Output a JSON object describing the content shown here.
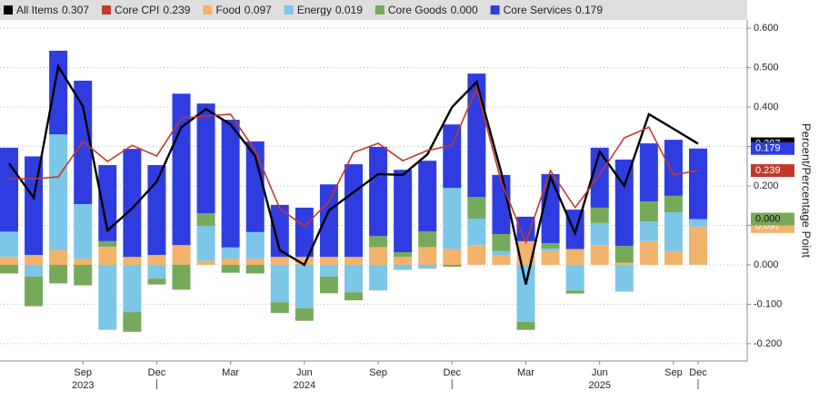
{
  "chart_data": {
    "type": "bar",
    "y_label": "Percent/Percentage Point",
    "categories": [
      null,
      null,
      null,
      "Sep",
      null,
      null,
      "Dec",
      null,
      null,
      "Mar",
      null,
      null,
      "Jun",
      null,
      null,
      "Sep",
      null,
      null,
      "Dec",
      null,
      null,
      "Mar",
      null,
      null,
      "Jun",
      null,
      null,
      "Sep",
      "Dec"
    ],
    "years": [
      "2023",
      "2024",
      "2025"
    ],
    "ylim": [
      -0.244,
      0.621
    ],
    "yticks": [
      {
        "value": 0.6,
        "label": "0.600"
      },
      {
        "value": 0.5,
        "label": "0.500"
      },
      {
        "value": 0.4,
        "label": "0.400"
      },
      {
        "value": 0.3,
        "label": "0.300"
      },
      {
        "value": 0.2,
        "label": "0.200"
      },
      {
        "value": 0.1,
        "label": "0.100"
      },
      {
        "value": 0,
        "label": "0.000"
      },
      {
        "value": -0.1,
        "label": "-0.100"
      },
      {
        "value": -0.2,
        "label": "-0.200"
      }
    ],
    "grid": true,
    "series": [
      {
        "name": "All Items",
        "type": "line",
        "color": "#000000",
        "values": [
          0.257,
          0.17,
          0.503,
          0.402,
          0.087,
          0.143,
          0.211,
          0.349,
          0.395,
          0.356,
          0.276,
          0.037,
          0.0,
          0.138,
          0.184,
          0.23,
          0.228,
          0.28,
          0.4,
          0.464,
          0.234,
          -0.05,
          0.223,
          0.08,
          0.287,
          0.2,
          0.382,
          0.345,
          0.307
        ]
      },
      {
        "name": "Core CPI",
        "type": "line",
        "color": "#c0392b",
        "values": [
          0.218,
          0.218,
          0.223,
          0.313,
          0.262,
          0.303,
          0.276,
          0.372,
          0.377,
          0.382,
          0.29,
          0.143,
          0.097,
          0.161,
          0.285,
          0.308,
          0.264,
          0.29,
          0.303,
          0.448,
          0.211,
          0.057,
          0.239,
          0.145,
          0.228,
          0.322,
          0.349,
          0.228,
          0.239
        ]
      },
      {
        "name": "Food",
        "type": "bar",
        "color": "#f2b36c",
        "values": [
          0.02,
          0.025,
          0.037,
          0.015,
          0.046,
          0.02,
          0.025,
          0.05,
          0.01,
          0.015,
          0.015,
          0.02,
          0.02,
          0.02,
          0.02,
          0.045,
          0.02,
          0.045,
          0.04,
          0.05,
          0.025,
          0.06,
          0.035,
          0.04,
          0.05,
          0.005,
          0.06,
          0.035,
          0.097
        ]
      },
      {
        "name": "Energy",
        "type": "bar",
        "color": "#7cc6e8",
        "values": [
          0.064,
          -0.03,
          0.294,
          0.139,
          -0.165,
          -0.12,
          -0.035,
          0.0,
          0.089,
          0.029,
          0.068,
          -0.095,
          -0.11,
          -0.03,
          -0.07,
          -0.065,
          -0.013,
          -0.01,
          0.155,
          0.067,
          0.01,
          -0.145,
          0.006,
          -0.065,
          0.056,
          -0.068,
          0.05,
          0.098,
          0.019
        ]
      },
      {
        "name": "Core Goods",
        "type": "bar",
        "color": "#76a95a",
        "values": [
          -0.022,
          -0.075,
          -0.047,
          -0.052,
          0.014,
          -0.05,
          -0.015,
          -0.063,
          0.032,
          -0.02,
          -0.022,
          -0.027,
          -0.032,
          -0.042,
          -0.02,
          0.028,
          0.012,
          0.04,
          -0.005,
          0.055,
          0.043,
          -0.02,
          0.014,
          -0.008,
          0.039,
          0.043,
          0.051,
          0.042,
          0.0
        ],
        "value_labels": [
          null,
          null,
          null,
          null,
          null,
          null,
          null,
          null,
          null,
          null,
          null,
          null,
          null,
          null,
          null,
          null,
          null,
          null,
          null,
          null,
          null,
          null,
          null,
          null,
          null,
          null,
          null,
          null,
          "0.000"
        ]
      },
      {
        "name": "Core Services",
        "type": "bar",
        "color": "#2f3de0",
        "values": [
          0.213,
          0.25,
          0.212,
          0.313,
          0.193,
          0.274,
          0.228,
          0.384,
          0.278,
          0.324,
          0.23,
          0.132,
          0.125,
          0.184,
          0.235,
          0.226,
          0.209,
          0.179,
          0.161,
          0.313,
          0.15,
          0.062,
          0.175,
          0.1,
          0.152,
          0.219,
          0.147,
          0.142,
          0.179
        ]
      }
    ]
  }
}
